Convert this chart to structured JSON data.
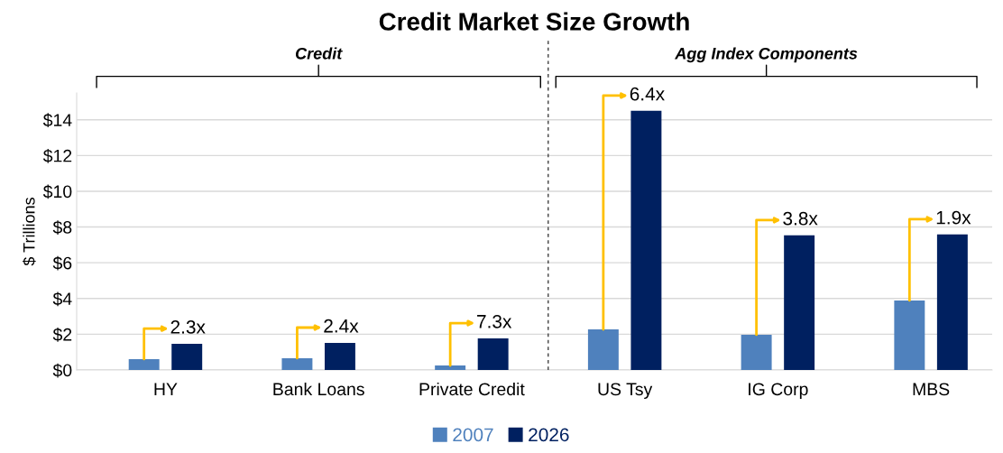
{
  "chart_data": {
    "type": "bar",
    "title": "Credit Market Size Growth",
    "ylabel": "$ Trillions",
    "categories": [
      "HY",
      "Bank Loans",
      "Private Credit",
      "US Tsy",
      "IG Corp",
      "MBS"
    ],
    "series": [
      {
        "name": "2007",
        "color": "#4f81bd",
        "values": [
          0.61,
          0.66,
          0.25,
          2.27,
          1.97,
          3.89
        ]
      },
      {
        "name": "2026",
        "color": "#002060",
        "values": [
          1.46,
          1.52,
          1.77,
          14.5,
          7.53,
          7.58
        ]
      }
    ],
    "ylim": [
      0,
      15.5
    ],
    "yticks": [
      {
        "value": 0,
        "label": "$0"
      },
      {
        "value": 2,
        "label": "$2"
      },
      {
        "value": 4,
        "label": "$4"
      },
      {
        "value": 6,
        "label": "$6"
      },
      {
        "value": 8,
        "label": "$8"
      },
      {
        "value": 10,
        "label": "$10"
      },
      {
        "value": 12,
        "label": "$12"
      },
      {
        "value": 14,
        "label": "$14"
      }
    ],
    "grid": "y",
    "legend": "bottom",
    "annotations": [
      "2.3x",
      "2.4x",
      "7.3x",
      "6.4x",
      "3.8x",
      "1.9x",
      "Credit",
      "Agg Index Components"
    ]
  }
}
